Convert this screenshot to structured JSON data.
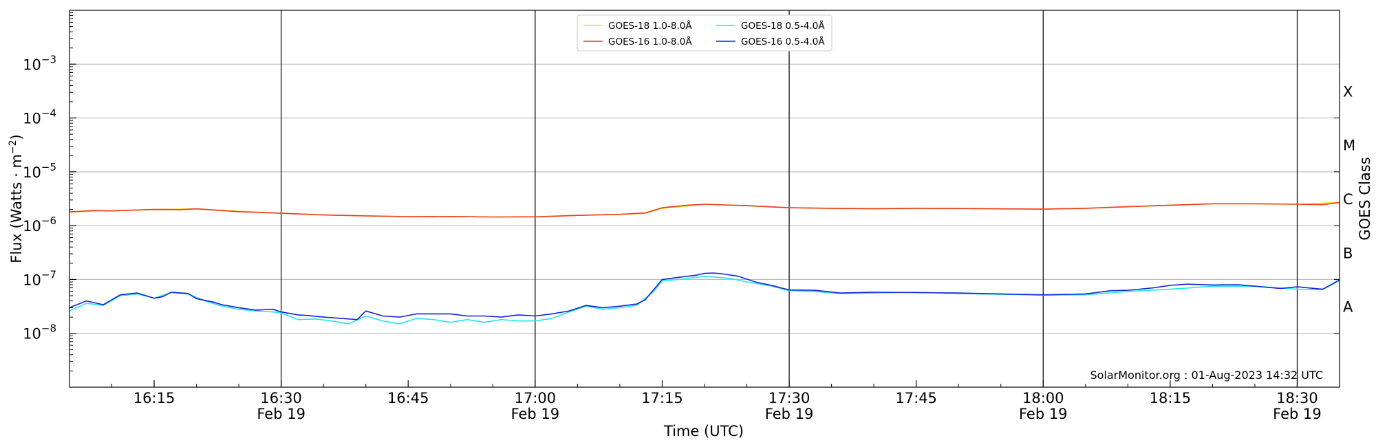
{
  "chart_data": {
    "type": "line",
    "xlabel": "Time (UTC)",
    "ylabel_base": "Flux (Watts · m",
    "ylabel_exp": "−2",
    "ylabel_close": ")",
    "right_label": "GOES Class",
    "watermark": "SolarMonitor.org : 01-Aug-2023 14:32 UTC",
    "y_scale": "log",
    "ylim": [
      "1e-9",
      "1e-2"
    ],
    "xlim": [
      "16:05",
      "18:35"
    ],
    "grid": "horizontal",
    "legend_placement": "top-center",
    "x_ticks": [
      {
        "t": "16:15",
        "label": "16:15"
      },
      {
        "t": "16:30",
        "label": "16:30",
        "date": "Feb 19"
      },
      {
        "t": "16:45",
        "label": "16:45"
      },
      {
        "t": "17:00",
        "label": "17:00",
        "date": "Feb 19"
      },
      {
        "t": "17:15",
        "label": "17:15"
      },
      {
        "t": "17:30",
        "label": "17:30",
        "date": "Feb 19"
      },
      {
        "t": "17:45",
        "label": "17:45"
      },
      {
        "t": "18:00",
        "label": "18:00",
        "date": "Feb 19"
      },
      {
        "t": "18:15",
        "label": "18:15"
      },
      {
        "t": "18:30",
        "label": "18:30",
        "date": "Feb 19"
      }
    ],
    "vlines": [
      "16:30",
      "17:00",
      "17:30",
      "18:00",
      "18:30"
    ],
    "y_ticks": [
      {
        "exp": -8,
        "base": "10",
        "sup": "−8"
      },
      {
        "exp": -7,
        "base": "10",
        "sup": "−7"
      },
      {
        "exp": -6,
        "base": "10",
        "sup": "−6"
      },
      {
        "exp": -5,
        "base": "10",
        "sup": "−5"
      },
      {
        "exp": -4,
        "base": "10",
        "sup": "−4"
      },
      {
        "exp": -3,
        "base": "10",
        "sup": "−3"
      }
    ],
    "goes_classes": [
      {
        "label": "A",
        "exp": -7.5
      },
      {
        "label": "B",
        "exp": -6.5
      },
      {
        "label": "C",
        "exp": -5.5
      },
      {
        "label": "M",
        "exp": -4.5
      },
      {
        "label": "X",
        "exp": -3.5
      }
    ],
    "series": [
      {
        "name": "GOES-18 1.0-8.0Å",
        "color": "#ffd700",
        "x": [
          "16:05",
          "16:10",
          "16:15",
          "16:20",
          "16:25",
          "16:30",
          "16:35",
          "16:40",
          "16:45",
          "16:50",
          "16:55",
          "17:00",
          "17:05",
          "17:10",
          "17:13",
          "17:15",
          "17:20",
          "17:25",
          "17:30",
          "17:35",
          "17:40",
          "17:45",
          "17:50",
          "17:55",
          "18:00",
          "18:05",
          "18:10",
          "18:15",
          "18:20",
          "18:25",
          "18:30",
          "18:35"
        ],
        "y": [
          1.8e-06,
          1.9e-06,
          2e-06,
          2.05e-06,
          1.85e-06,
          1.7e-06,
          1.58e-06,
          1.52e-06,
          1.47e-06,
          1.47e-06,
          1.45e-06,
          1.45e-06,
          1.55e-06,
          1.62e-06,
          1.7e-06,
          2.1e-06,
          2.5e-06,
          2.35e-06,
          2.15e-06,
          2.1e-06,
          2.08e-06,
          2.1e-06,
          2.08e-06,
          2.05e-06,
          2.03e-06,
          2.1e-06,
          2.25e-06,
          2.4e-06,
          2.55e-06,
          2.55e-06,
          2.5e-06,
          2.7e-06
        ]
      },
      {
        "name": "GOES-16 1.0-8.0Å",
        "color": "#ee3a1c",
        "x": [
          "16:05",
          "16:08",
          "16:10",
          "16:15",
          "16:18",
          "16:20",
          "16:25",
          "16:30",
          "16:35",
          "16:40",
          "16:45",
          "16:50",
          "16:55",
          "17:00",
          "17:05",
          "17:10",
          "17:13",
          "17:15",
          "17:18",
          "17:20",
          "17:25",
          "17:30",
          "17:35",
          "17:40",
          "17:45",
          "17:50",
          "17:55",
          "18:00",
          "18:05",
          "18:10",
          "18:15",
          "18:20",
          "18:25",
          "18:30",
          "18:33",
          "18:35"
        ],
        "y": [
          1.8e-06,
          1.92e-06,
          1.88e-06,
          2e-06,
          1.98e-06,
          2.05e-06,
          1.82e-06,
          1.7e-06,
          1.58e-06,
          1.52e-06,
          1.47e-06,
          1.48e-06,
          1.45e-06,
          1.46e-06,
          1.55e-06,
          1.62e-06,
          1.72e-06,
          2.15e-06,
          2.4e-06,
          2.5e-06,
          2.35e-06,
          2.15e-06,
          2.1e-06,
          2.06e-06,
          2.1e-06,
          2.08e-06,
          2.05e-06,
          2.03e-06,
          2.1e-06,
          2.25e-06,
          2.4e-06,
          2.55e-06,
          2.55e-06,
          2.5e-06,
          2.45e-06,
          2.7e-06
        ]
      },
      {
        "name": "GOES-18 0.5-4.0Å",
        "color": "#22e4f2",
        "x": [
          "16:05",
          "16:07",
          "16:09",
          "16:11",
          "16:13",
          "16:15",
          "16:17",
          "16:19",
          "16:21",
          "16:23",
          "16:25",
          "16:27",
          "16:29",
          "16:30",
          "16:32",
          "16:34",
          "16:36",
          "16:38",
          "16:40",
          "16:42",
          "16:44",
          "16:46",
          "16:48",
          "16:50",
          "16:52",
          "16:54",
          "16:56",
          "16:58",
          "17:00",
          "17:02",
          "17:04",
          "17:06",
          "17:08",
          "17:10",
          "17:12",
          "17:14",
          "17:15",
          "17:17",
          "17:20",
          "17:23",
          "17:25",
          "17:28",
          "17:30",
          "17:33",
          "17:36",
          "17:40",
          "17:45",
          "17:50",
          "17:55",
          "18:00",
          "18:05",
          "18:10",
          "18:15",
          "18:20",
          "18:25",
          "18:30",
          "18:33",
          "18:35"
        ],
        "y": [
          2.6e-08,
          3.6e-08,
          3.3e-08,
          5e-08,
          5.4e-08,
          4.5e-08,
          5.7e-08,
          5.4e-08,
          4e-08,
          3.2e-08,
          2.8e-08,
          2.6e-08,
          2.5e-08,
          2.4e-08,
          1.8e-08,
          1.85e-08,
          1.7e-08,
          1.5e-08,
          2.1e-08,
          1.7e-08,
          1.5e-08,
          1.9e-08,
          1.8e-08,
          1.6e-08,
          1.8e-08,
          1.6e-08,
          1.8e-08,
          1.7e-08,
          1.7e-08,
          1.9e-08,
          2.5e-08,
          3.2e-08,
          2.8e-08,
          3e-08,
          3.3e-08,
          6e-08,
          9.5e-08,
          1e-07,
          1.15e-07,
          1.05e-07,
          9e-08,
          7.5e-08,
          6.2e-08,
          6e-08,
          5.5e-08,
          5.6e-08,
          5.8e-08,
          5.5e-08,
          5.3e-08,
          5.1e-08,
          5.2e-08,
          6e-08,
          6.6e-08,
          7.5e-08,
          7.5e-08,
          6.6e-08,
          6.5e-08,
          9.5e-08
        ]
      },
      {
        "name": "GOES-16 0.5-4.0Å",
        "color": "#1025d6",
        "x": [
          "16:05",
          "16:07",
          "16:09",
          "16:11",
          "16:13",
          "16:15",
          "16:16",
          "16:17",
          "16:19",
          "16:20",
          "16:22",
          "16:23",
          "16:25",
          "16:27",
          "16:29",
          "16:30",
          "16:32",
          "16:33",
          "16:35",
          "16:37",
          "16:39",
          "16:40",
          "16:42",
          "16:44",
          "16:46",
          "16:48",
          "16:50",
          "16:52",
          "16:54",
          "16:56",
          "16:58",
          "17:00",
          "17:02",
          "17:04",
          "17:06",
          "17:08",
          "17:10",
          "17:12",
          "17:13",
          "17:15",
          "17:17",
          "17:19",
          "17:20",
          "17:21",
          "17:22",
          "17:24",
          "17:26",
          "17:28",
          "17:30",
          "17:33",
          "17:36",
          "17:40",
          "17:45",
          "17:50",
          "17:55",
          "18:00",
          "18:03",
          "18:05",
          "18:08",
          "18:10",
          "18:13",
          "18:15",
          "18:17",
          "18:20",
          "18:23",
          "18:25",
          "18:28",
          "18:30",
          "18:33",
          "18:35"
        ],
        "y": [
          3e-08,
          4e-08,
          3.4e-08,
          5.2e-08,
          5.6e-08,
          4.5e-08,
          4.8e-08,
          5.8e-08,
          5.5e-08,
          4.4e-08,
          3.8e-08,
          3.4e-08,
          3e-08,
          2.7e-08,
          2.8e-08,
          2.5e-08,
          2.2e-08,
          2.15e-08,
          2e-08,
          1.9e-08,
          1.8e-08,
          2.6e-08,
          2.1e-08,
          2e-08,
          2.3e-08,
          2.3e-08,
          2.3e-08,
          2.1e-08,
          2.1e-08,
          2e-08,
          2.2e-08,
          2.1e-08,
          2.3e-08,
          2.6e-08,
          3.3e-08,
          3e-08,
          3.2e-08,
          3.5e-08,
          4.2e-08,
          1e-07,
          1.1e-07,
          1.2e-07,
          1.3e-07,
          1.32e-07,
          1.28e-07,
          1.15e-07,
          9e-08,
          7.7e-08,
          6.4e-08,
          6.3e-08,
          5.6e-08,
          5.8e-08,
          5.7e-08,
          5.6e-08,
          5.4e-08,
          5.2e-08,
          5.3e-08,
          5.4e-08,
          6.2e-08,
          6.3e-08,
          7e-08,
          7.8e-08,
          8.2e-08,
          7.9e-08,
          8e-08,
          7.5e-08,
          6.8e-08,
          7.3e-08,
          6.6e-08,
          9.8e-08
        ]
      }
    ]
  }
}
